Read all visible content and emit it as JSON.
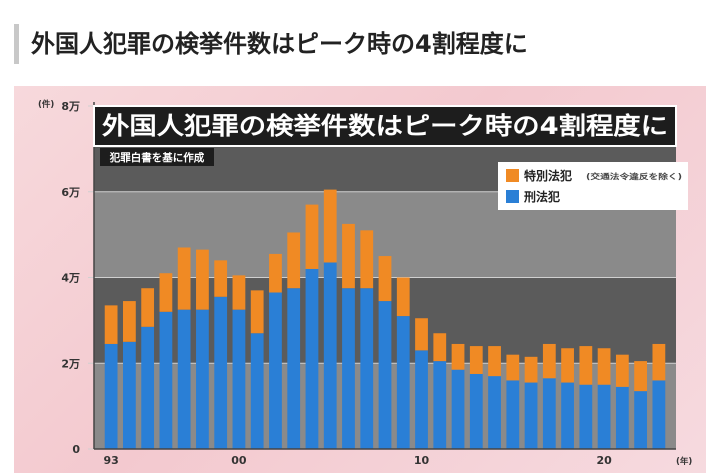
{
  "heading": "外国人犯罪の検挙件数はピーク時の4割程度に",
  "colors": {
    "special": "#f08a24",
    "penal": "#2a7fd6",
    "plot_band_dark": "#5b5b5b",
    "plot_band_light": "#8a8a8a"
  },
  "chart_data": {
    "type": "bar",
    "stacked": true,
    "title": "外国人犯罪の検挙件数はピーク時の4割程度に",
    "subtitle": "犯罪白書を基に作成",
    "y_unit": "(件)",
    "x_unit": "(年)",
    "ylim": [
      0,
      80000
    ],
    "y_ticks": [
      {
        "value": 0,
        "label": "0"
      },
      {
        "value": 20000,
        "label": "2万"
      },
      {
        "value": 40000,
        "label": "4万"
      },
      {
        "value": 60000,
        "label": "6万"
      },
      {
        "value": 80000,
        "label": "8万"
      }
    ],
    "x_tick_labels": [
      {
        "index": 0,
        "label": "93"
      },
      {
        "index": 7,
        "label": "00"
      },
      {
        "index": 17,
        "label": "10"
      },
      {
        "index": 27,
        "label": "20"
      }
    ],
    "categories": [
      "1993",
      "1994",
      "1995",
      "1996",
      "1997",
      "1998",
      "1999",
      "2000",
      "2001",
      "2002",
      "2003",
      "2004",
      "2005",
      "2006",
      "2007",
      "2008",
      "2009",
      "2010",
      "2011",
      "2012",
      "2013",
      "2014",
      "2015",
      "2016",
      "2017",
      "2018",
      "2019",
      "2020",
      "2021",
      "2022",
      "2023"
    ],
    "legend": [
      {
        "name": "特別法犯",
        "note": "(交通法令違反を除く)"
      },
      {
        "name": "刑法犯"
      }
    ],
    "series": [
      {
        "name": "刑法犯",
        "values": [
          24500,
          25000,
          28500,
          32000,
          32500,
          32500,
          35500,
          32500,
          27000,
          36500,
          37500,
          42000,
          43500,
          37500,
          37500,
          34500,
          31000,
          23000,
          20500,
          18500,
          17500,
          17000,
          16000,
          15500,
          16500,
          15500,
          15000,
          15000,
          14500,
          13500,
          16000
        ]
      },
      {
        "name": "特別法犯",
        "values": [
          9000,
          9500,
          9000,
          9000,
          14500,
          14000,
          8500,
          8000,
          10000,
          9000,
          13000,
          15000,
          17000,
          15000,
          13500,
          10500,
          9000,
          7500,
          6500,
          6000,
          6500,
          7000,
          6000,
          6000,
          8000,
          8000,
          9000,
          8500,
          7500,
          7000,
          8500
        ]
      }
    ]
  }
}
